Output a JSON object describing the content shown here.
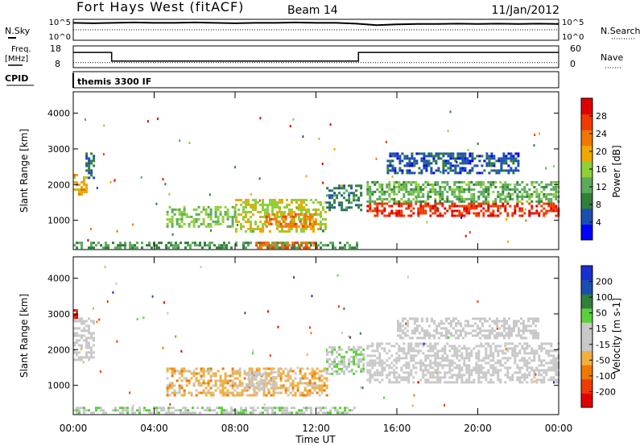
{
  "header": {
    "station": "Fort Hays West (fitACF)",
    "beam": "Beam 14",
    "date": "11/Jan/2012"
  },
  "strips": {
    "nsky_label": "N.Sky",
    "nsearch_label": "N.Search",
    "noise_ticks": [
      "10^5",
      "10^0"
    ],
    "freq_label_1": "Freq.",
    "freq_label_2": "[MHz]",
    "freq_ticks": [
      "18",
      "8"
    ],
    "nave_label": "Nave",
    "nave_ticks": [
      "60",
      "0"
    ],
    "cpid_label": "CPID",
    "cpid_value": "themis 3300 IF"
  },
  "colors": {
    "power_scale": [
      "#0000ff",
      "#1a4fb0",
      "#2f7e3b",
      "#5aaa5a",
      "#8fd03a",
      "#f0a800",
      "#f07800",
      "#f03a00",
      "#e00000"
    ],
    "velocity_scale": [
      "#e00000",
      "#f03a00",
      "#f07800",
      "#f0b040",
      "#c8c8c8",
      "#c8c8c8",
      "#5ad03a",
      "#2f7e3b",
      "#1a4fb0",
      "#1a2fd0"
    ]
  },
  "chart_data": [
    {
      "type": "line",
      "name": "noise-strip",
      "x_range": [
        0,
        24
      ],
      "series": [
        {
          "name": "N.Sky",
          "x": [
            0,
            1,
            2,
            3,
            4,
            5,
            6,
            7,
            8,
            9,
            10,
            11,
            12,
            13,
            14,
            15,
            16,
            17,
            18,
            19,
            20,
            21,
            22,
            23,
            24
          ],
          "values": [
            4.5,
            4.4,
            4.5,
            4.6,
            4.5,
            4.5,
            4.6,
            4.5,
            4.4,
            4.5,
            4.5,
            4.6,
            4.5,
            4.5,
            4.3,
            3.9,
            4.1,
            4.2,
            4.2,
            4.3,
            4.2,
            4.3,
            4.2,
            4.3,
            4.2
          ]
        }
      ]
    },
    {
      "type": "line",
      "name": "freq-nave-strip",
      "x_range": [
        0,
        24
      ],
      "series": [
        {
          "name": "Freq.",
          "x": [
            0,
            1.9,
            1.9,
            14.1,
            14.1,
            24
          ],
          "values": [
            15,
            15,
            11,
            11,
            15,
            15
          ]
        },
        {
          "name": "Nave",
          "x": [
            0,
            24
          ],
          "values": [
            14,
            14
          ]
        }
      ]
    },
    {
      "type": "heatmap",
      "title": "Power",
      "xlabel": "Time UT",
      "ylabel": "Slant Range [km]",
      "x_ticks": [
        "00:00",
        "04:00",
        "08:00",
        "12:00",
        "16:00",
        "20:00",
        "00:00"
      ],
      "y_ticks": [
        "1000",
        "2000",
        "3000",
        "4000"
      ],
      "xlim": [
        0,
        24
      ],
      "ylim": [
        180,
        4600
      ],
      "colorbar_label": "Power [dB]",
      "colorbar_ticks": [
        "4",
        "8",
        "12",
        "16",
        "20",
        "24",
        "28"
      ],
      "colorbar_range": [
        0,
        30
      ],
      "bands": [
        {
          "x0": 0,
          "x1": 0.6,
          "r0": 1700,
          "r1": 2300,
          "val": 18
        },
        {
          "x0": 0.6,
          "x1": 1.0,
          "r0": 2200,
          "r1": 2900,
          "val": 6
        },
        {
          "x0": 4.6,
          "x1": 8.0,
          "r0": 800,
          "r1": 1400,
          "val": 14
        },
        {
          "x0": 8.0,
          "x1": 12.5,
          "r0": 700,
          "r1": 1600,
          "val": 16
        },
        {
          "x0": 9.5,
          "x1": 12.0,
          "r0": 800,
          "r1": 1200,
          "val": 22
        },
        {
          "x0": 12.5,
          "x1": 14.2,
          "r0": 1300,
          "r1": 2000,
          "val": 8
        },
        {
          "x0": 14.5,
          "x1": 24,
          "r0": 1100,
          "r1": 1500,
          "val": 26
        },
        {
          "x0": 14.5,
          "x1": 24,
          "r0": 1500,
          "r1": 2100,
          "val": 12
        },
        {
          "x0": 15.5,
          "x1": 22,
          "r0": 2300,
          "r1": 2900,
          "val": 5
        },
        {
          "x0": 0,
          "x1": 14,
          "r0": 250,
          "r1": 400,
          "val": 10
        },
        {
          "x0": 9,
          "x1": 12,
          "r0": 250,
          "r1": 400,
          "val": 24
        }
      ]
    },
    {
      "type": "heatmap",
      "title": "Velocity",
      "xlabel": "Time UT",
      "ylabel": "Slant Range [km]",
      "x_ticks": [
        "00:00",
        "04:00",
        "08:00",
        "12:00",
        "16:00",
        "20:00",
        "00:00"
      ],
      "y_ticks": [
        "1000",
        "2000",
        "3000",
        "4000"
      ],
      "xlim": [
        0,
        24
      ],
      "ylim": [
        180,
        4600
      ],
      "colorbar_label": "Velocity [m s-1]",
      "colorbar_ticks": [
        "200",
        "100",
        "50",
        "15",
        "-15",
        "-50",
        "-100",
        "-200"
      ],
      "colorbar_range": [
        -250,
        250
      ],
      "bands": [
        {
          "x0": 0,
          "x1": 1.0,
          "r0": 1700,
          "r1": 2900,
          "val": 0
        },
        {
          "x0": 0,
          "x1": 0.2,
          "r0": 2900,
          "r1": 3200,
          "val": -200
        },
        {
          "x0": 4.6,
          "x1": 12.5,
          "r0": 700,
          "r1": 1500,
          "val": -70
        },
        {
          "x0": 8.5,
          "x1": 10.0,
          "r0": 900,
          "r1": 1400,
          "val": 0
        },
        {
          "x0": 12.5,
          "x1": 14.3,
          "r0": 1300,
          "r1": 2100,
          "val": 40
        },
        {
          "x0": 14.5,
          "x1": 24,
          "r0": 1100,
          "r1": 2200,
          "val": 0
        },
        {
          "x0": 16,
          "x1": 23,
          "r0": 2300,
          "r1": 2900,
          "val": -5
        },
        {
          "x0": 0,
          "x1": 14,
          "r0": 250,
          "r1": 400,
          "val": 30
        }
      ]
    }
  ]
}
